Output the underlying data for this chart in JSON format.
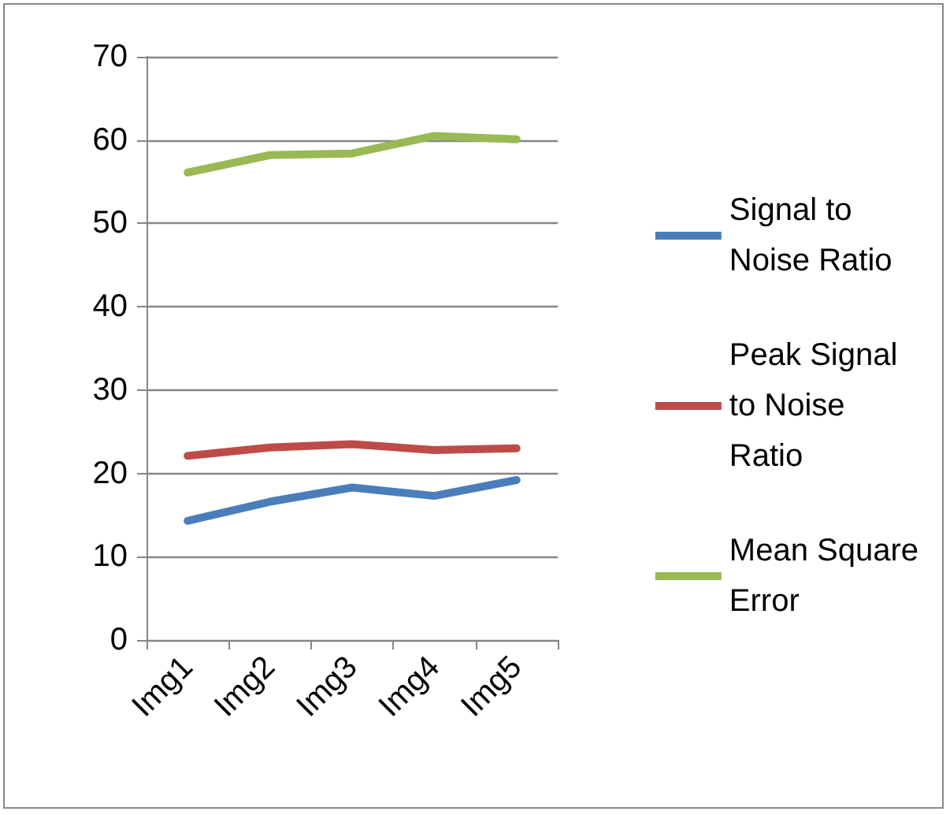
{
  "chart_data": {
    "type": "line",
    "categories": [
      "Img1",
      "Img2",
      "Img3",
      "Img4",
      "Img5"
    ],
    "series": [
      {
        "name": "Signal to Noise Ratio",
        "color": "#4a7ebb",
        "values": [
          14.3,
          16.6,
          18.3,
          17.3,
          19.2
        ]
      },
      {
        "name": "Peak Signal to Noise Ratio",
        "color": "#be4b48",
        "values": [
          22.1,
          23.1,
          23.5,
          22.8,
          23.0
        ]
      },
      {
        "name": "Mean Square Error",
        "color": "#98b954",
        "values": [
          56.1,
          58.2,
          58.4,
          60.5,
          60.1
        ]
      }
    ],
    "ylim": [
      0,
      70
    ],
    "yticks": [
      0,
      10,
      20,
      30,
      40,
      50,
      60,
      70
    ],
    "grid": "y",
    "legend": "right",
    "marker": "none",
    "line_style": "solid"
  }
}
